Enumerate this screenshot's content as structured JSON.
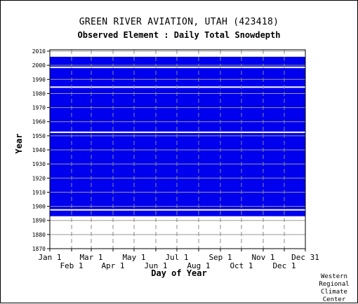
{
  "title": "GREEN RIVER AVIATION, UTAH   (423418)",
  "subtitle": "Observed Element : Daily Total Snowdepth",
  "credit": "Western\nRegional\nClimate\nCenter",
  "chart_data": {
    "type": "heatmap",
    "title": "GREEN RIVER AVIATION, UTAH   (423418)",
    "subtitle": "Observed Element : Daily Total Snowdepth",
    "xlabel": "Day of Year",
    "ylabel": "Year",
    "xlim": [
      1,
      365
    ],
    "ylim": [
      1870,
      2011
    ],
    "grid": true,
    "data_color": "#0000ee",
    "months_upper": [
      {
        "label": "Jan 1",
        "day": 1
      },
      {
        "label": "Mar 1",
        "day": 60
      },
      {
        "label": "May 1",
        "day": 121
      },
      {
        "label": "Jul 1",
        "day": 182
      },
      {
        "label": "Sep 1",
        "day": 244
      },
      {
        "label": "Nov 1",
        "day": 305
      },
      {
        "label": "Dec 31",
        "day": 365
      }
    ],
    "months_lower": [
      {
        "label": "Feb 1",
        "day": 32
      },
      {
        "label": "Apr 1",
        "day": 91
      },
      {
        "label": "Jun 1",
        "day": 152
      },
      {
        "label": "Aug 1",
        "day": 213
      },
      {
        "label": "Oct 1",
        "day": 274
      },
      {
        "label": "Dec 1",
        "day": 335
      }
    ],
    "y_ticks": [
      "1870",
      "1880",
      "1890",
      "1900",
      "1910",
      "1920",
      "1930",
      "1940",
      "1950",
      "1960",
      "1970",
      "1980",
      "1990",
      "2000",
      "2010"
    ],
    "observed_periods": [
      {
        "start_year": 1893,
        "end_year": 1896
      },
      {
        "start_year": 1898,
        "end_year": 2005
      }
    ],
    "missing_gaps_years": [
      1897,
      1952,
      1984,
      1998
    ]
  }
}
